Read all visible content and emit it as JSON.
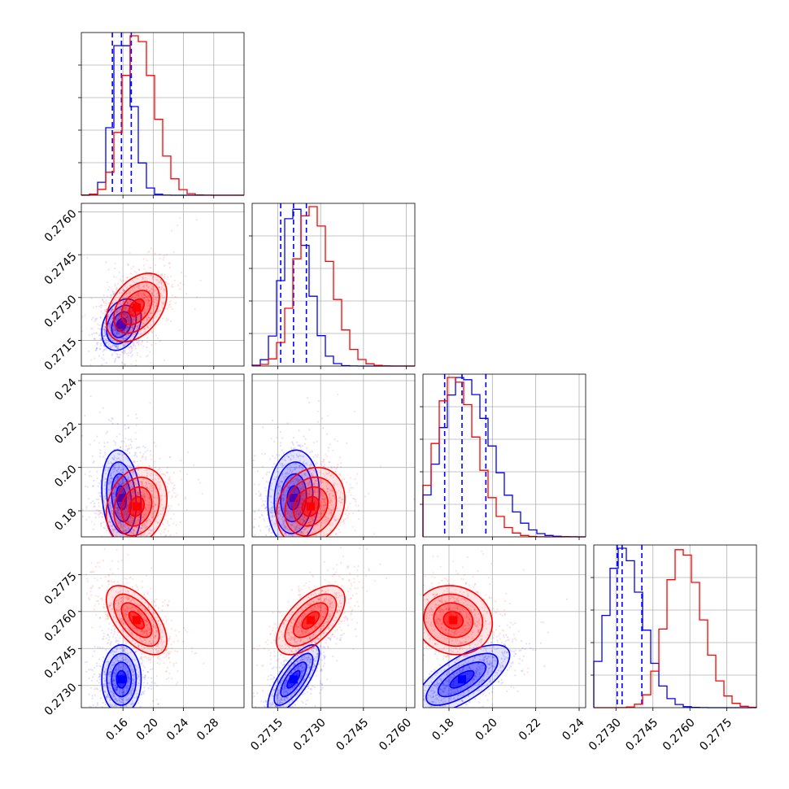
{
  "colors": {
    "series_a": "#0000ff",
    "series_b": "#ff0000",
    "grid": "#b0b0b0"
  },
  "chart_data": {
    "type": "corner",
    "title": "",
    "grid": true,
    "n_params": 4,
    "params": [
      {
        "range": [
          0.105,
          0.32
        ],
        "ticks": [
          0.16,
          0.2,
          0.24,
          0.28
        ],
        "tick_labels": [
          "0.16",
          "0.20",
          "0.24",
          "0.28"
        ]
      },
      {
        "range": [
          0.2706,
          0.2763
        ],
        "ticks": [
          0.2715,
          0.273,
          0.2745,
          0.276
        ],
        "tick_labels": [
          "0.2715",
          "0.2730",
          "0.2745",
          "0.2760"
        ]
      },
      {
        "range": [
          0.168,
          0.243
        ],
        "ticks": [
          0.18,
          0.2,
          0.22,
          0.24
        ],
        "tick_labels": [
          "0.18",
          "0.20",
          "0.22",
          "0.24"
        ]
      },
      {
        "range": [
          0.2721,
          0.2787
        ],
        "ticks": [
          0.273,
          0.2745,
          0.276,
          0.2775
        ],
        "tick_labels": [
          "0.2730",
          "0.2745",
          "0.2760",
          "0.2775"
        ]
      }
    ],
    "series": [
      {
        "color": "#0000ff",
        "means": [
          0.158,
          0.27205,
          0.186,
          0.27325
        ],
        "sds": [
          0.013,
          0.00045,
          0.011,
          0.0007
        ],
        "quantile_lines": [
          [
            0.146,
            0.158,
            0.171
          ],
          [
            0.2716,
            0.27205,
            0.2725
          ],
          [
            0.178,
            0.186,
            0.197
          ],
          [
            0.27305,
            0.27325,
            0.27405
          ]
        ],
        "correlations": [
          {
            "pair": [
              1,
              0
            ],
            "rho": 0.3
          },
          {
            "pair": [
              2,
              0
            ],
            "rho": -0.2
          },
          {
            "pair": [
              2,
              1
            ],
            "rho": 0.1
          },
          {
            "pair": [
              3,
              0
            ],
            "rho": 0.0
          },
          {
            "pair": [
              3,
              1
            ],
            "rho": 0.75
          },
          {
            "pair": [
              3,
              2
            ],
            "rho": 0.7
          }
        ]
      },
      {
        "color": "#ff0000",
        "means": [
          0.178,
          0.27265,
          0.182,
          0.27565
        ],
        "sds": [
          0.02,
          0.0006,
          0.009,
          0.0007
        ],
        "quantile_lines": [],
        "correlations": [
          {
            "pair": [
              1,
              0
            ],
            "rho": 0.4
          },
          {
            "pair": [
              2,
              0
            ],
            "rho": 0.2
          },
          {
            "pair": [
              2,
              1
            ],
            "rho": 0.2
          },
          {
            "pair": [
              3,
              0
            ],
            "rho": -0.6
          },
          {
            "pair": [
              3,
              1
            ],
            "rho": 0.6
          },
          {
            "pair": [
              3,
              2
            ],
            "rho": -0.1
          }
        ]
      }
    ]
  }
}
